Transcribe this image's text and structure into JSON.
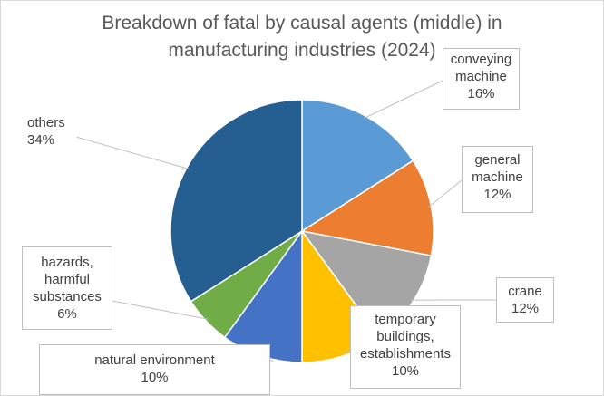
{
  "chart_data": {
    "type": "pie",
    "title": "Breakdown of fatal by causal agents (middle) in manufacturing industries (2024)",
    "title_lines": [
      "Breakdown of fatal by causal agents (middle) in",
      "manufacturing industries (2024)"
    ],
    "slices": [
      {
        "label_lines": [
          "conveying",
          "machine"
        ],
        "label": "conveying machine",
        "value": 16,
        "pct_text": "16%",
        "color": "#5b9bd5"
      },
      {
        "label_lines": [
          "general",
          "machine"
        ],
        "label": "general machine",
        "value": 12,
        "pct_text": "12%",
        "color": "#ed7d31"
      },
      {
        "label_lines": [
          "crane"
        ],
        "label": "crane",
        "value": 12,
        "pct_text": "12%",
        "color": "#a5a5a5"
      },
      {
        "label_lines": [
          "temporary",
          "buildings,",
          "establishments"
        ],
        "label": "temporary buildings, establishments",
        "value": 10,
        "pct_text": "10%",
        "color": "#ffc000"
      },
      {
        "label_lines": [
          "natural environment"
        ],
        "label": "natural environment",
        "value": 10,
        "pct_text": "10%",
        "color": "#4472c4"
      },
      {
        "label_lines": [
          "hazards,",
          "harmful",
          "substances"
        ],
        "label": "hazards, harmful substances",
        "value": 6,
        "pct_text": "6%",
        "color": "#70ad47"
      },
      {
        "label_lines": [
          "others"
        ],
        "label": "others",
        "value": 34,
        "pct_text": "34%",
        "color": "#255e91"
      }
    ],
    "legend": "none",
    "data_labels": "callouts"
  }
}
